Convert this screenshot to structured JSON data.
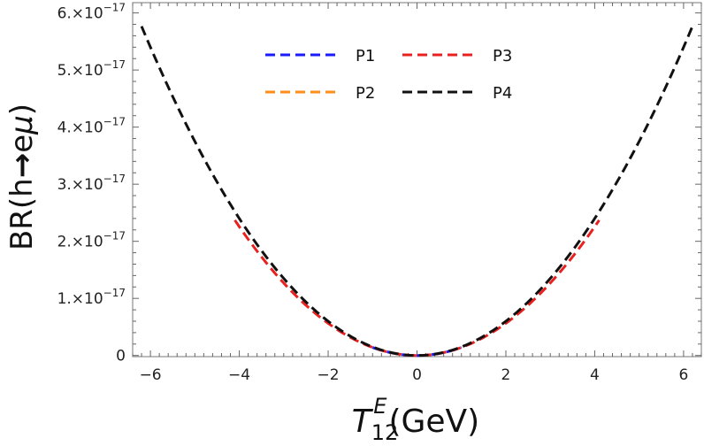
{
  "chart_data": {
    "type": "line",
    "title": "",
    "xlabel": {
      "symbol": "T",
      "subscript": "12",
      "superscript": "E",
      "unit": "(GeV)"
    },
    "ylabel": {
      "prefix": "BR(h",
      "arrow": "→",
      "particle_e": "e",
      "particle_mu": "μ",
      "suffix": ")"
    },
    "xlim": [
      -6.4,
      6.4
    ],
    "ylim": [
      -2e-19,
      6.18e-17
    ],
    "x_ticks": [
      {
        "value": -6,
        "label": "−6"
      },
      {
        "value": -4,
        "label": "−4"
      },
      {
        "value": -2,
        "label": "−2"
      },
      {
        "value": 0,
        "label": "0"
      },
      {
        "value": 2,
        "label": "2"
      },
      {
        "value": 4,
        "label": "4"
      },
      {
        "value": 6,
        "label": "6"
      }
    ],
    "y_ticks": [
      {
        "value": 0,
        "mantissa": "0",
        "exponent": ""
      },
      {
        "value": 1e-17,
        "mantissa": "1.×10",
        "exponent": "−17"
      },
      {
        "value": 2e-17,
        "mantissa": "2.×10",
        "exponent": "−17"
      },
      {
        "value": 3e-17,
        "mantissa": "3.×10",
        "exponent": "−17"
      },
      {
        "value": 4e-17,
        "mantissa": "4.×10",
        "exponent": "−17"
      },
      {
        "value": 5e-17,
        "mantissa": "5.×10",
        "exponent": "−17"
      },
      {
        "value": 6e-17,
        "mantissa": "6.×10",
        "exponent": "−17"
      }
    ],
    "grid": false,
    "legend_position": "top-center",
    "series": [
      {
        "name": "P1",
        "color": "#1a1aff",
        "x_range": [
          -1.0,
          1.0
        ],
        "coefficient": 1.41e-18
      },
      {
        "name": "P2",
        "color": "#ff8c1a",
        "x_range": [
          -0.6,
          0.6
        ],
        "coefficient": 1.5e-18
      },
      {
        "name": "P3",
        "color": "#e8211f",
        "x_range": [
          -4.1,
          4.1
        ],
        "coefficient": 1.41e-18
      },
      {
        "name": "P4",
        "color": "#111111",
        "x_range": [
          -6.2,
          6.2
        ],
        "coefficient": 1.5e-18
      }
    ]
  }
}
